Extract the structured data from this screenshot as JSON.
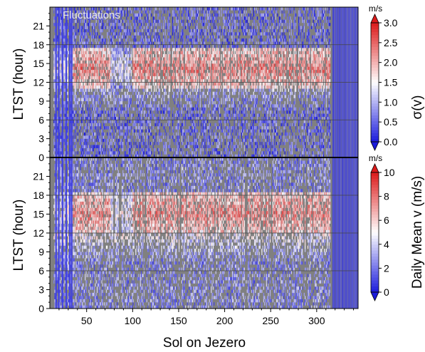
{
  "chart_data": [
    {
      "type": "heatmap",
      "annotation": "Fluctuations",
      "xlabel": "Sol on Jezero",
      "ylabel": "LTST (hour)",
      "xlim": [
        10,
        345
      ],
      "ylim": [
        0,
        24
      ],
      "x_ticks": [
        "50",
        "100",
        "150",
        "200",
        "250",
        "300"
      ],
      "y_ticks": [
        "0",
        "3",
        "6",
        "9",
        "12",
        "15",
        "18",
        "21"
      ],
      "grid_hours": [
        6,
        12,
        18
      ],
      "colorbar": {
        "label": "σ(v)",
        "unit": "m/s",
        "range": [
          0,
          3
        ],
        "ticks": [
          "0.0",
          "0.5",
          "1.0",
          "1.5",
          "2.0",
          "2.5",
          "3.0"
        ],
        "colors": [
          "#1a1adc",
          "#ffffff",
          "#dc1a1a"
        ]
      },
      "gap_color": "#808080",
      "features": {
        "data_start_sol": 14,
        "data_end_sol": 315,
        "daytime_peak_hours": [
          11,
          17
        ],
        "daytime_peak_sols": [
          35,
          75
        ],
        "secondary_peak_sols": [
          100,
          315
        ],
        "daytime_peak_value": 2.3,
        "night_value": 0.5
      }
    },
    {
      "type": "heatmap",
      "xlabel": "Sol on Jezero",
      "ylabel": "LTST (hour)",
      "xlim": [
        10,
        345
      ],
      "ylim": [
        0,
        24
      ],
      "x_ticks": [
        "50",
        "100",
        "150",
        "200",
        "250",
        "300"
      ],
      "y_ticks": [
        "0",
        "3",
        "6",
        "9",
        "12",
        "15",
        "18",
        "21"
      ],
      "grid_hours": [
        6,
        12,
        18
      ],
      "colorbar": {
        "label": "Daily Mean v (m/s)",
        "unit": "m/s",
        "range": [
          0,
          10
        ],
        "ticks": [
          "0",
          "2",
          "4",
          "6",
          "8",
          "10"
        ],
        "colors": [
          "#1a1adc",
          "#ffffff",
          "#dc1a1a"
        ]
      },
      "gap_color": "#808080",
      "features": {
        "data_start_sol": 14,
        "data_end_sol": 315,
        "daytime_peak_hours": [
          12,
          18
        ],
        "daytime_peak_sols": [
          35,
          75
        ],
        "secondary_peak_sols": [
          100,
          315
        ],
        "daytime_peak_value": 7.5,
        "night_value": 2.5
      }
    }
  ]
}
